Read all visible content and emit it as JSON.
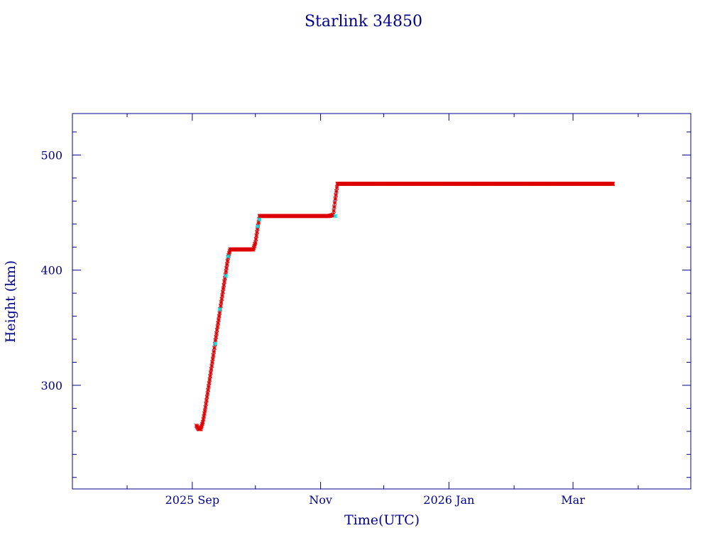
{
  "chart_data": {
    "type": "scatter",
    "title": "Starlink 34850",
    "xlabel": "Time(UTC)",
    "ylabel": "Height (km)",
    "x_major_ticks": [
      {
        "date": "2025-09-01",
        "label": "2025 Sep"
      },
      {
        "date": "2025-11-01",
        "label": "Nov"
      },
      {
        "date": "2026-01-01",
        "label": "2026 Jan"
      },
      {
        "date": "2026-03-01",
        "label": "Mar"
      }
    ],
    "x_minor_ticks": [
      "2025-08-01",
      "2025-10-01",
      "2025-12-01",
      "2026-02-01",
      "2026-04-01"
    ],
    "xlim": [
      "2025-07-06",
      "2026-04-26"
    ],
    "ylim": [
      210,
      536
    ],
    "y_major_ticks": [
      300,
      400,
      500
    ],
    "y_minor_step": 20,
    "grid": false,
    "colors": {
      "axis": "#00008b",
      "line": "#00008b",
      "markers": "#dd0000",
      "highlight": "#00e5ee"
    },
    "series": [
      {
        "values": [
          [
            "2025-09-03",
            265
          ],
          [
            "2025-09-04",
            262
          ],
          [
            "2025-09-05",
            262
          ],
          [
            "2025-09-06",
            268
          ],
          [
            "2025-09-07",
            278
          ],
          [
            "2025-09-08",
            290
          ],
          [
            "2025-09-09",
            302
          ],
          [
            "2025-09-10",
            314
          ],
          [
            "2025-09-11",
            326
          ],
          [
            "2025-09-12",
            339
          ],
          [
            "2025-09-13",
            351
          ],
          [
            "2025-09-14",
            363
          ],
          [
            "2025-09-15",
            375
          ],
          [
            "2025-09-16",
            387
          ],
          [
            "2025-09-17",
            399
          ],
          [
            "2025-09-18",
            411
          ],
          [
            "2025-09-19",
            418
          ],
          [
            "2025-09-22",
            418
          ],
          [
            "2025-09-25",
            418
          ],
          [
            "2025-09-28",
            418
          ],
          [
            "2025-09-30",
            418
          ],
          [
            "2025-10-01",
            424
          ],
          [
            "2025-10-02",
            436
          ],
          [
            "2025-10-03",
            447
          ],
          [
            "2025-10-08",
            447
          ],
          [
            "2025-10-15",
            447
          ],
          [
            "2025-10-22",
            447
          ],
          [
            "2025-10-29",
            447
          ],
          [
            "2025-11-05",
            447
          ],
          [
            "2025-11-07",
            448
          ],
          [
            "2025-11-08",
            462
          ],
          [
            "2025-11-09",
            475
          ],
          [
            "2025-11-16",
            475
          ],
          [
            "2025-11-26",
            475
          ],
          [
            "2025-12-06",
            475
          ],
          [
            "2025-12-16",
            475
          ],
          [
            "2025-12-26",
            475
          ],
          [
            "2026-01-05",
            475
          ],
          [
            "2026-01-15",
            475
          ],
          [
            "2026-01-25",
            475
          ],
          [
            "2026-02-04",
            475
          ],
          [
            "2026-02-14",
            475
          ],
          [
            "2026-02-24",
            475
          ],
          [
            "2026-03-06",
            475
          ],
          [
            "2026-03-16",
            475
          ],
          [
            "2026-03-20",
            475
          ]
        ]
      }
    ],
    "highlight_points": [
      [
        "2025-09-12",
        336
      ],
      [
        "2025-09-14",
        366
      ],
      [
        "2025-09-17",
        395
      ],
      [
        "2025-09-18",
        412
      ],
      [
        "2025-10-02",
        438
      ],
      [
        "2025-10-03",
        444
      ],
      [
        "2025-11-08",
        447
      ]
    ]
  }
}
